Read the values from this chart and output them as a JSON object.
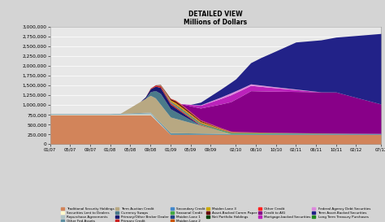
{
  "title": "DETAILED VIEW",
  "subtitle": "Millions of Dollars",
  "background_color": "#d4d4d4",
  "plot_background": "#e8e8e8",
  "ylim": [
    0,
    3000000
  ],
  "yticks": [
    0,
    250000,
    500000,
    750000,
    1000000,
    1250000,
    1500000,
    1750000,
    2000000,
    2250000,
    2500000,
    2750000,
    3000000
  ],
  "x_labels": [
    "01/07",
    "05/07",
    "09/07",
    "01/08",
    "05/08",
    "09/08",
    "01/09",
    "05/09",
    "09/09",
    "02/10",
    "06/10",
    "10/10",
    "02/11",
    "06/11",
    "10/11",
    "02/12",
    "07/12"
  ],
  "layers": [
    {
      "label": "Traditional Security Holdings",
      "color": "#D2845A"
    },
    {
      "label": "Securities Lent to Dealers",
      "color": "#FFFACD"
    },
    {
      "label": "Repurchase Agreements",
      "color": "#B0C4C4"
    },
    {
      "label": "Other Fed Assets",
      "color": "#5F8FA0"
    },
    {
      "label": "Term Auction Credit",
      "color": "#B8A882"
    },
    {
      "label": "Currency Swaps",
      "color": "#4A7A8A"
    },
    {
      "label": "Primary/Other Broker Dealer",
      "color": "#191970"
    },
    {
      "label": "Primary Credit",
      "color": "#CC2222"
    },
    {
      "label": "Secondary Credit",
      "color": "#4488CC"
    },
    {
      "label": "Seasonal Credit",
      "color": "#44AA44"
    },
    {
      "label": "Maiden Lane 1",
      "color": "#224488"
    },
    {
      "label": "Maiden Lane 2",
      "color": "#CC5500"
    },
    {
      "label": "Maiden Lane 3",
      "color": "#CCAA00"
    },
    {
      "label": "Asset-Backed Comm Paper",
      "color": "#660000"
    },
    {
      "label": "Net Portfolio Holdings",
      "color": "#004400"
    },
    {
      "label": "Other Credit",
      "color": "#FF2222"
    },
    {
      "label": "Credit to AIG",
      "color": "#880088"
    },
    {
      "label": "Mortgage-backed Securities",
      "color": "#BB22BB"
    },
    {
      "label": "Federal Agency Debt Securities",
      "color": "#DD88DD"
    },
    {
      "label": "Term Asset-Backed Securities",
      "color": "#222288"
    },
    {
      "label": "Long Term Treasury Purchases",
      "color": "#228822"
    }
  ]
}
